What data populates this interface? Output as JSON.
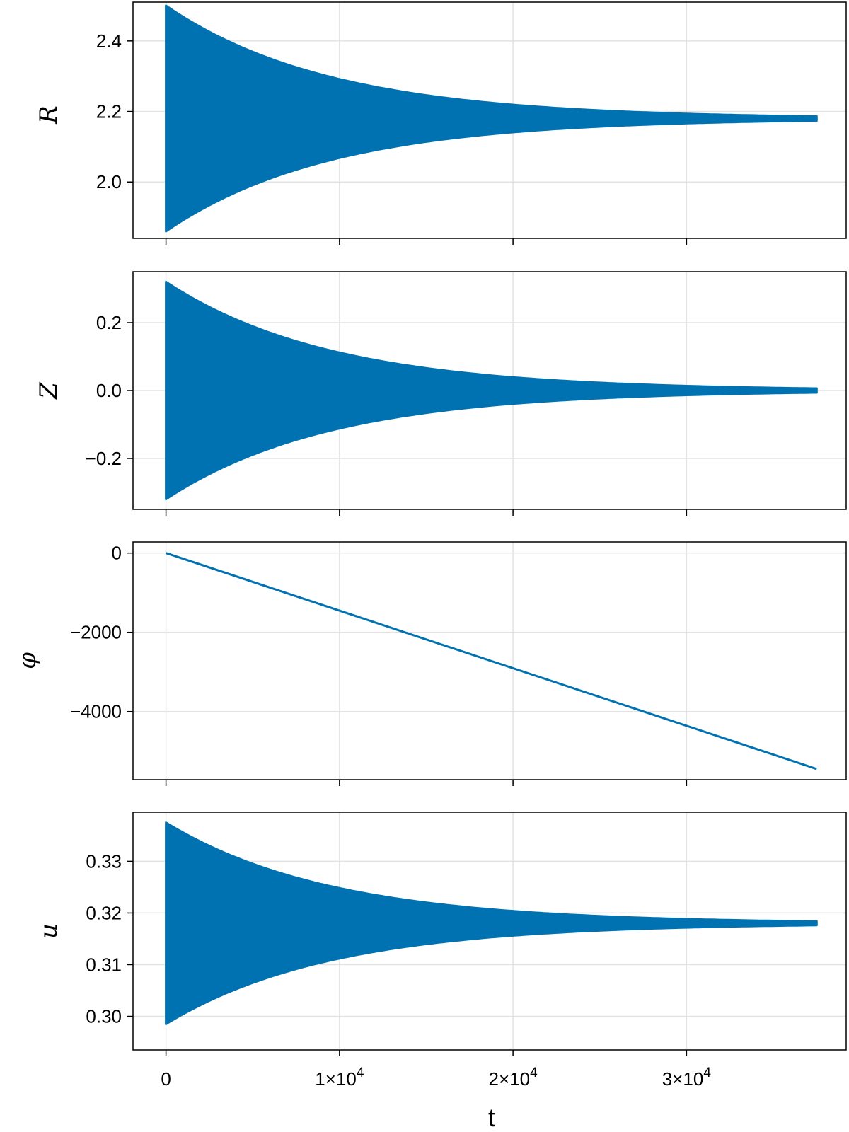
{
  "chart_data": [
    {
      "type": "line",
      "ylabel": "R",
      "xlabel": "",
      "ylim": [
        1.84,
        2.51
      ],
      "yticks": [
        {
          "v": 2.0,
          "label": "2.0"
        },
        {
          "v": 2.2,
          "label": "2.2"
        },
        {
          "v": 2.4,
          "label": "2.4"
        }
      ],
      "series": [
        {
          "kind": "decaying-oscillation",
          "center": 2.18,
          "amplitude0": 0.32,
          "decay_time": 9500,
          "t_end": 37500
        }
      ],
      "grid": true
    },
    {
      "type": "line",
      "ylabel": "Z",
      "xlabel": "",
      "ylim": [
        -0.35,
        0.35
      ],
      "yticks": [
        {
          "v": -0.2,
          "label": "−0.2"
        },
        {
          "v": 0.0,
          "label": "0.0"
        },
        {
          "v": 0.2,
          "label": "0.2"
        }
      ],
      "series": [
        {
          "kind": "decaying-oscillation",
          "center": 0.0,
          "amplitude0": 0.32,
          "decay_time": 9500,
          "t_end": 37500
        }
      ],
      "grid": true
    },
    {
      "type": "line",
      "ylabel": "φ",
      "xlabel": "",
      "ylim": [
        -5720,
        280
      ],
      "yticks": [
        {
          "v": -4000,
          "label": "−4000"
        },
        {
          "v": -2000,
          "label": "−2000"
        },
        {
          "v": 0,
          "label": "0"
        }
      ],
      "series": [
        {
          "kind": "line",
          "x": [
            0,
            37500
          ],
          "y": [
            0,
            -5450
          ]
        }
      ],
      "grid": true
    },
    {
      "type": "line",
      "ylabel": "u",
      "xlabel": "t",
      "ylim": [
        0.2935,
        0.3395
      ],
      "yticks": [
        {
          "v": 0.3,
          "label": "0.30"
        },
        {
          "v": 0.31,
          "label": "0.31"
        },
        {
          "v": 0.32,
          "label": "0.32"
        },
        {
          "v": 0.33,
          "label": "0.33"
        }
      ],
      "series": [
        {
          "kind": "decaying-oscillation",
          "center": 0.318,
          "amplitude0": 0.0195,
          "decay_time": 9500,
          "t_end": 37500
        }
      ],
      "grid": true
    }
  ],
  "x_axis": {
    "xlim": [
      -1900,
      39200
    ],
    "ticks": [
      {
        "v": 0,
        "base": "0",
        "exp": ""
      },
      {
        "v": 10000,
        "base": "1×10",
        "exp": "4"
      },
      {
        "v": 20000,
        "base": "2×10",
        "exp": "4"
      },
      {
        "v": 30000,
        "base": "3×10",
        "exp": "4"
      }
    ],
    "label": "t"
  },
  "colors": {
    "series": "#0072b2",
    "grid": "#e3e3e3",
    "axis": "#000000"
  }
}
